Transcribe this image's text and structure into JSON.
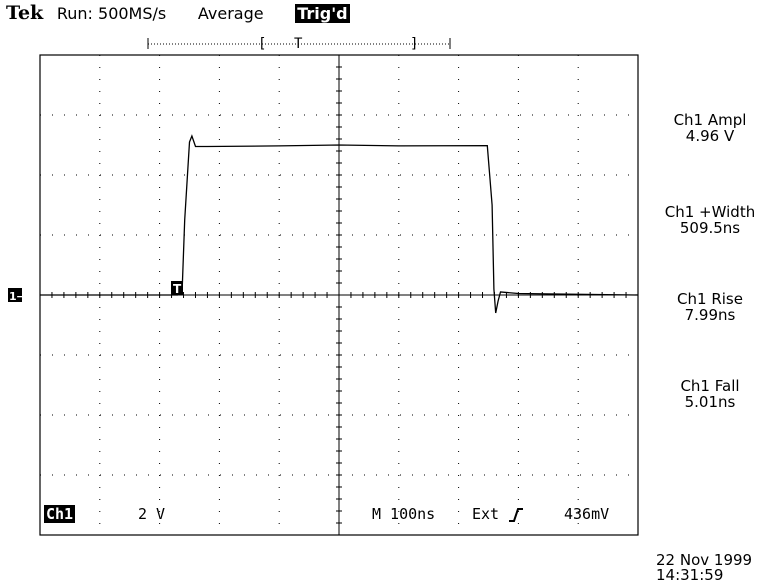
{
  "header": {
    "brand": "Tek",
    "run_status": "Run: 500MS/s",
    "acq_mode": "Average",
    "trigger_status": "Trig'd"
  },
  "record_bar": {
    "bracket_left": "[",
    "trigger_marker": "T",
    "bracket_right": "]"
  },
  "markers": {
    "channel": "1→",
    "trigger_point": "T"
  },
  "measurements": [
    {
      "label": "Ch1 Ampl",
      "value": "4.96 V"
    },
    {
      "label": "Ch1 +Width",
      "value": "509.5ns"
    },
    {
      "label": "Ch1 Rise",
      "value": "7.99ns"
    },
    {
      "label": "Ch1 Fall",
      "value": "5.01ns"
    }
  ],
  "status_bar": {
    "channel": "Ch1",
    "volts_per_div": "2 V",
    "timebase": "M 100ns",
    "trigger_source": "Ext",
    "trigger_slope_icon": "rising-edge-icon",
    "trigger_level": "436mV"
  },
  "timestamp": {
    "date": "22 Nov 1999",
    "time": "14:31:59"
  },
  "colors": {
    "trace": "#000000",
    "background": "#ffffff",
    "graticule": "#000000"
  },
  "chart_data": {
    "type": "line",
    "title": "",
    "xlabel": "",
    "ylabel": "",
    "x_units": "ns",
    "y_units": "V",
    "xlim": [
      -500,
      500
    ],
    "ylim": [
      -8,
      8
    ],
    "grid": true,
    "series": [
      {
        "x": [
          -500,
          -280,
          -270,
          -262,
          -258,
          -250,
          -246,
          -240,
          -220,
          -100,
          0,
          100,
          248,
          256,
          259,
          262,
          266,
          270,
          300,
          500
        ],
        "y": [
          0.0,
          0.0,
          0.0,
          0.3,
          2.5,
          5.1,
          5.3,
          4.95,
          4.95,
          4.97,
          5.0,
          4.97,
          4.98,
          3.0,
          0.2,
          -0.6,
          -0.2,
          0.1,
          0.05,
          0.0
        ]
      }
    ]
  }
}
